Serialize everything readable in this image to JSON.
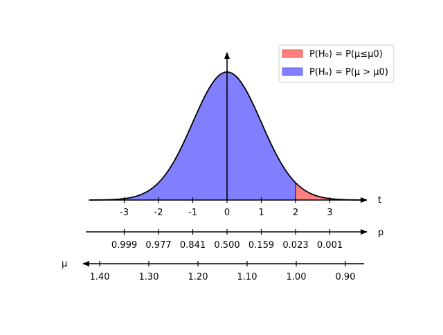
{
  "chart_data": {
    "type": "area",
    "distribution": "standard normal",
    "xlim": [
      -4,
      4
    ],
    "ylim": [
      0,
      0.4
    ],
    "threshold_t": 2.0,
    "colors": {
      "h0_fill": "#ff8080",
      "ha_fill": "#8080ff",
      "h0_legend": "#ff7f7f",
      "ha_legend": "#7f7fff",
      "axis": "#000000"
    },
    "legend_position": "top-right",
    "legend": [
      {
        "key": "h0",
        "label": "P(H₀) = P(μ≤μ0)"
      },
      {
        "key": "ha",
        "label": "P(Hₐ) = P(μ > μ0)"
      }
    ],
    "axes": {
      "t": {
        "label": "t",
        "ticks": [
          {
            "value": -3,
            "label": "-3"
          },
          {
            "value": -2,
            "label": "-2"
          },
          {
            "value": -1,
            "label": "-1"
          },
          {
            "value": 0,
            "label": "0"
          },
          {
            "value": 1,
            "label": "1"
          },
          {
            "value": 2,
            "label": "2"
          },
          {
            "value": 3,
            "label": "3"
          }
        ]
      },
      "p": {
        "label": "p",
        "ticks": [
          {
            "t": -3,
            "label": "0.999"
          },
          {
            "t": -2,
            "label": "0.977"
          },
          {
            "t": -1,
            "label": "0.841"
          },
          {
            "t": 0,
            "label": "0.500"
          },
          {
            "t": 1,
            "label": "0.159"
          },
          {
            "t": 2,
            "label": "0.023"
          },
          {
            "t": 3,
            "label": "0.001"
          }
        ]
      },
      "mu": {
        "label": "μ",
        "ticks": [
          {
            "value": 1.4,
            "label": "1.40"
          },
          {
            "value": 1.3,
            "label": "1.30"
          },
          {
            "value": 1.2,
            "label": "1.20"
          },
          {
            "value": 1.1,
            "label": "1.10"
          },
          {
            "value": 1.0,
            "label": "1.00"
          },
          {
            "value": 0.9,
            "label": "0.90"
          }
        ]
      }
    }
  }
}
